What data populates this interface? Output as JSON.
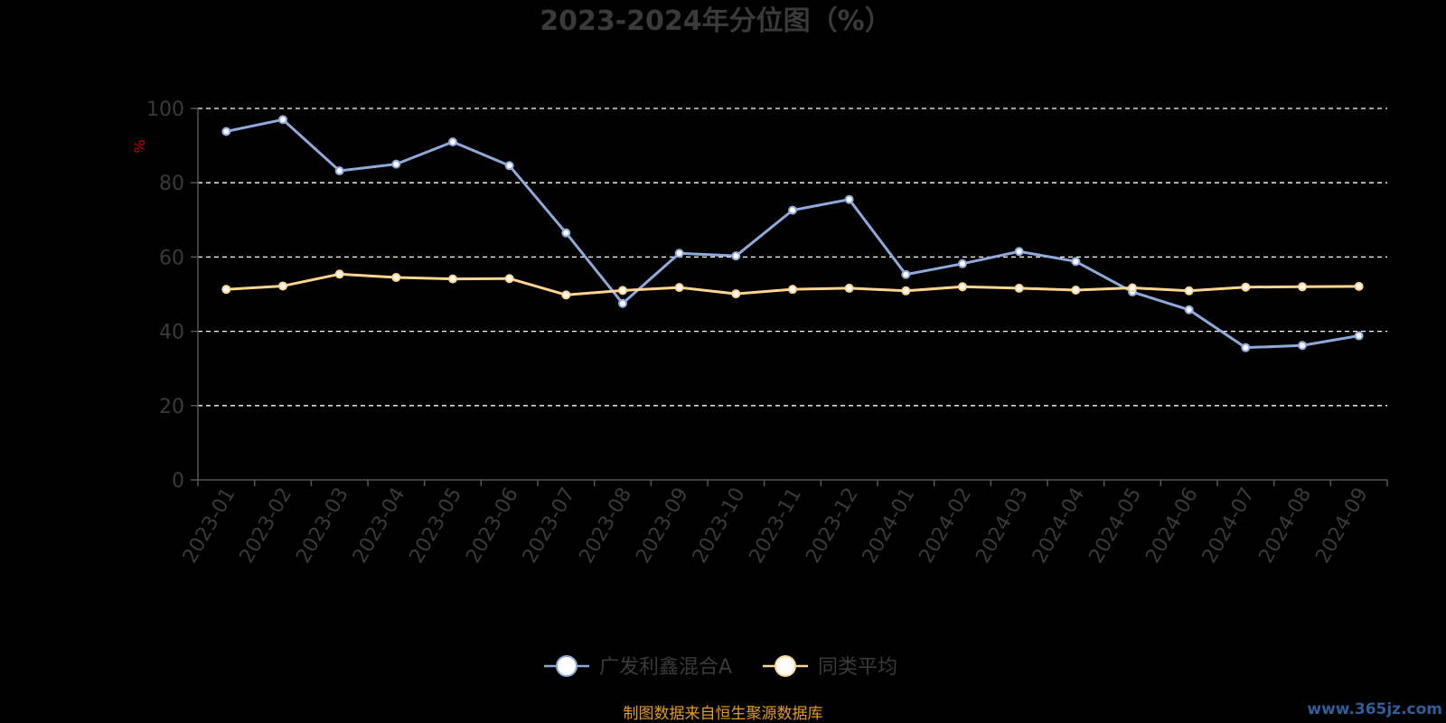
{
  "colors": {
    "background": "#000000",
    "series_1": "#8eaadb",
    "series_2": "#ffd58f",
    "grid": "#ffffff",
    "axis": "#555555",
    "text": "#3a3a3a",
    "ylabel": "#cc0000",
    "source": "#e39b21",
    "watermark": "#2f5f9b"
  },
  "footer": {
    "source_text": "制图数据来自恒生聚源数据库",
    "watermark_text": "www.365jz.com"
  },
  "chart_data": {
    "type": "line",
    "title": "2023-2024年分位图（%）",
    "ylabel": "%",
    "xlabel": "",
    "ylim": [
      0,
      100
    ],
    "yticks": [
      0,
      20,
      40,
      60,
      80,
      100
    ],
    "grid": true,
    "grid_style": "dashed",
    "legend_position": "bottom-center",
    "categories": [
      "2023-01",
      "2023-02",
      "2023-03",
      "2023-04",
      "2023-05",
      "2023-06",
      "2023-07",
      "2023-08",
      "2023-09",
      "2023-10",
      "2023-11",
      "2023-12",
      "2024-01",
      "2024-02",
      "2024-03",
      "2024-04",
      "2024-05",
      "2024-06",
      "2024-07",
      "2024-08",
      "2024-09"
    ],
    "series": [
      {
        "name": "广发利鑫混合A",
        "color": "#8eaadb",
        "values": [
          93.8,
          97,
          83.2,
          85,
          91,
          84.6,
          66.5,
          47.5,
          61,
          60.3,
          72.6,
          75.5,
          55.3,
          58.2,
          61.5,
          58.8,
          50.6,
          45.8,
          35.6,
          36.2,
          38.8
        ]
      },
      {
        "name": "同类平均",
        "color": "#ffd58f",
        "values": [
          51.3,
          52.2,
          55.4,
          54.5,
          54.1,
          54.2,
          49.8,
          51,
          51.8,
          50.1,
          51.3,
          51.6,
          50.9,
          52,
          51.6,
          51.1,
          51.7,
          50.9,
          51.9,
          52,
          52.1
        ]
      }
    ]
  }
}
